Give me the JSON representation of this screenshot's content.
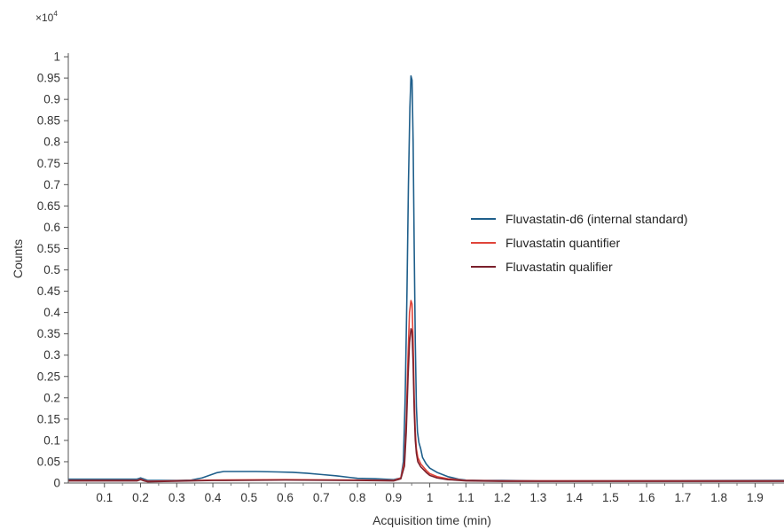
{
  "chart_data": {
    "type": "line",
    "xlabel": "Acquisition time (min)",
    "ylabel": "Counts",
    "y_multiplier": {
      "base": "×10",
      "exponent": "4"
    },
    "xlim": [
      0,
      1.98
    ],
    "ylim": [
      0,
      1.05
    ],
    "x_ticks": [
      0.1,
      0.2,
      0.3,
      0.4,
      0.5,
      0.6,
      0.7,
      0.8,
      0.9,
      1.0,
      1.1,
      1.2,
      1.3,
      1.4,
      1.5,
      1.6,
      1.7,
      1.8,
      1.9
    ],
    "x_tick_labels": [
      "0.1",
      "0.2",
      "0.3",
      "0.4",
      "0.5",
      "0.6",
      "0.7",
      "0.8",
      "0.9",
      "1",
      "1.1",
      "1.2",
      "1.3",
      "1.4",
      "1.5",
      "1.6",
      "1.7",
      "1.8",
      "1.9"
    ],
    "y_ticks": [
      0,
      0.05,
      0.1,
      0.15,
      0.2,
      0.25,
      0.3,
      0.35,
      0.4,
      0.45,
      0.5,
      0.55,
      0.6,
      0.65,
      0.7,
      0.75,
      0.8,
      0.85,
      0.9,
      0.95,
      1.0
    ],
    "y_tick_labels": [
      "0",
      "0.05",
      "0.1",
      "0.15",
      "0.2",
      "0.25",
      "0.3",
      "0.35",
      "0.4",
      "0.45",
      "0.5",
      "0.55",
      "0.6",
      "0.65",
      "0.7",
      "0.75",
      "0.8",
      "0.85",
      "0.9",
      "0.95",
      "1"
    ],
    "grid": false,
    "legend_position": "right",
    "series": [
      {
        "name": "Fluvastatin-d6 (internal standard)",
        "color": "#1f5f8b",
        "x": [
          0.0,
          0.19,
          0.2,
          0.21,
          0.22,
          0.3,
          0.34,
          0.37,
          0.39,
          0.41,
          0.43,
          0.47,
          0.52,
          0.58,
          0.62,
          0.66,
          0.7,
          0.74,
          0.78,
          0.8,
          0.85,
          0.9,
          0.92,
          0.927,
          0.932,
          0.937,
          0.941,
          0.945,
          0.948,
          0.951,
          0.954,
          0.957,
          0.96,
          0.963,
          0.966,
          0.97,
          0.975,
          0.98,
          0.99,
          1.0,
          1.02,
          1.05,
          1.08,
          1.1,
          1.15,
          1.2,
          1.3,
          1.98
        ],
        "y": [
          0.009,
          0.009,
          0.012,
          0.009,
          0.006,
          0.006,
          0.007,
          0.012,
          0.018,
          0.024,
          0.027,
          0.027,
          0.027,
          0.026,
          0.025,
          0.023,
          0.02,
          0.017,
          0.013,
          0.011,
          0.01,
          0.008,
          0.012,
          0.05,
          0.2,
          0.45,
          0.7,
          0.88,
          0.955,
          0.945,
          0.8,
          0.55,
          0.33,
          0.18,
          0.12,
          0.095,
          0.08,
          0.06,
          0.045,
          0.035,
          0.025,
          0.015,
          0.009,
          0.007,
          0.006,
          0.006,
          0.005,
          0.006
        ]
      },
      {
        "name": "Fluvastatin quantifier",
        "color": "#e0443a",
        "x": [
          0.0,
          0.19,
          0.2,
          0.21,
          0.22,
          0.4,
          0.6,
          0.8,
          0.9,
          0.92,
          0.93,
          0.935,
          0.94,
          0.944,
          0.948,
          0.951,
          0.954,
          0.957,
          0.96,
          0.963,
          0.967,
          0.975,
          0.99,
          1.0,
          1.02,
          1.05,
          1.1,
          1.2,
          1.98
        ],
        "y": [
          0.006,
          0.006,
          0.009,
          0.006,
          0.004,
          0.007,
          0.008,
          0.007,
          0.006,
          0.012,
          0.05,
          0.15,
          0.3,
          0.4,
          0.428,
          0.42,
          0.33,
          0.2,
          0.12,
          0.08,
          0.06,
          0.045,
          0.03,
          0.022,
          0.015,
          0.01,
          0.006,
          0.005,
          0.005
        ]
      },
      {
        "name": "Fluvastatin qualifier",
        "color": "#7a1f2b",
        "x": [
          0.0,
          0.19,
          0.2,
          0.21,
          0.22,
          0.4,
          0.6,
          0.8,
          0.9,
          0.92,
          0.93,
          0.935,
          0.94,
          0.944,
          0.948,
          0.951,
          0.954,
          0.957,
          0.96,
          0.963,
          0.967,
          0.975,
          0.99,
          1.0,
          1.02,
          1.05,
          1.1,
          1.2,
          1.98
        ],
        "y": [
          0.005,
          0.005,
          0.008,
          0.005,
          0.003,
          0.006,
          0.007,
          0.006,
          0.005,
          0.01,
          0.04,
          0.12,
          0.25,
          0.33,
          0.362,
          0.355,
          0.28,
          0.17,
          0.1,
          0.07,
          0.05,
          0.038,
          0.025,
          0.018,
          0.012,
          0.008,
          0.005,
          0.004,
          0.004
        ]
      }
    ]
  }
}
